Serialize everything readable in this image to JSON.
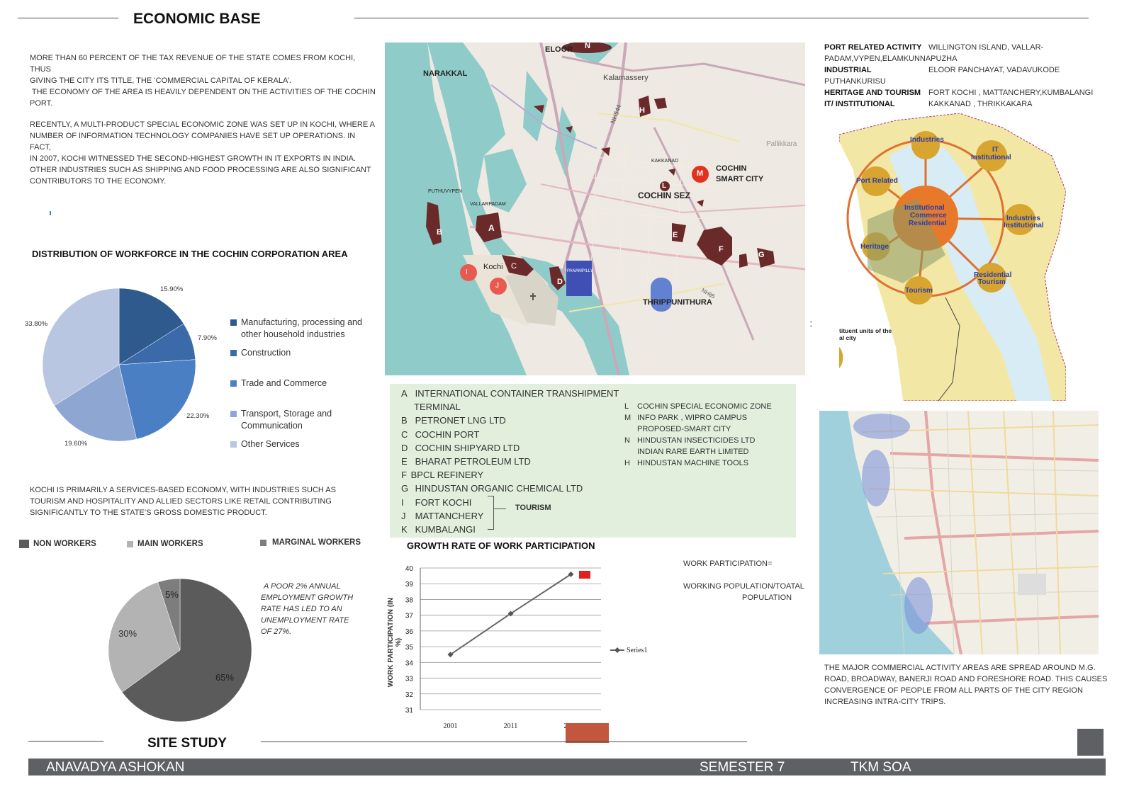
{
  "header": {
    "title": "ECONOMIC BASE"
  },
  "intro": {
    "p1": [
      "MORE THAN 60 PERCENT OF THE TAX REVENUE OF THE STATE COMES FROM KOCHI, THUS",
      "GIVING THE CITY ITS TITLE, THE ‘COMMERCIAL CAPITAL OF KERALA’.",
      " THE ECONOMY OF THE AREA IS HEAVILY DEPENDENT ON THE ACTIVITIES OF THE COCHIN",
      "PORT."
    ],
    "p2": [
      "RECENTLY, A MULTI-PRODUCT SPECIAL ECONOMIC ZONE WAS SET UP IN KOCHI, WHERE A",
      "NUMBER OF INFORMATION TECHNOLOGY COMPANIES HAVE SET UP OPERATIONS. IN FACT,",
      "IN 2007, KOCHI WITNESSED THE SECOND-HIGHEST GROWTH IN IT EXPORTS IN INDIA.",
      "OTHER INDUSTRIES SUCH AS SHIPPING AND FOOD PROCESSING ARE ALSO SIGNIFICANT",
      "CONTRIBUTORS TO THE ECONOMY."
    ]
  },
  "workforce": {
    "title": "DISTRIBUTION OF WORKFORCE IN THE COCHIN CORPORATION AREA",
    "legend": [
      {
        "label1": "Manufacturing, processing and",
        "label2": "other household industries",
        "color": "#2f5a8e"
      },
      {
        "label1": "Construction",
        "label2": "",
        "color": "#3b6aa8"
      },
      {
        "label1": "Trade and Commerce",
        "label2": "",
        "color": "#4a7fc4"
      },
      {
        "label1": "Transport, Storage and",
        "label2": "Communication",
        "color": "#8ea6d2"
      },
      {
        "label1": "Other Services",
        "label2": "",
        "color": "#b9c6e2"
      }
    ],
    "pct_labels": [
      "15.90%",
      "7.90%",
      "22.30%",
      "19.60%",
      "33.80%"
    ]
  },
  "services_note": [
    "KOCHI IS PRIMARILY A SERVICES-BASED ECONOMY, WITH INDUSTRIES SUCH AS",
    "TOURISM AND HOSPITALITY AND ALLIED SECTORS LIKE RETAIL CONTRIBUTING",
    "SIGNIFICANTLY TO THE STATE’S GROSS DOMESTIC PRODUCT."
  ],
  "workers": {
    "legend": [
      {
        "label": "NON WORKERS",
        "color": "#5b5b5b"
      },
      {
        "label": "MAIN WORKERS",
        "color": "#b3b3b3"
      },
      {
        "label": "MARGINAL WORKERS",
        "color": "#7d7d7d"
      }
    ],
    "pct_labels": [
      "65%",
      "30%",
      "5%"
    ],
    "note": [
      "A POOR 2% ANNUAL",
      "EMPLOYMENT GROWTH",
      "RATE HAS LED TO AN",
      "UNEMPLOYMENT RATE",
      "OF 27%."
    ]
  },
  "chart_data": [
    {
      "type": "pie",
      "title": "DISTRIBUTION OF WORKFORCE IN THE COCHIN CORPORATION AREA",
      "categories": [
        "Manufacturing, processing and other household industries",
        "Construction",
        "Trade and Commerce",
        "Transport, Storage and Communication",
        "Other Services"
      ],
      "values": [
        15.9,
        7.9,
        22.3,
        19.6,
        33.8
      ]
    },
    {
      "type": "pie",
      "title": "",
      "categories": [
        "NON WORKERS",
        "MAIN WORKERS",
        "MARGINAL WORKERS"
      ],
      "values": [
        65,
        30,
        5
      ]
    },
    {
      "type": "line",
      "title": "GROWTH RATE OF WORK PARTICIPATION",
      "xlabel": "",
      "ylabel": "WORK PARTICIPATION  (IN %)",
      "categories": [
        "2001",
        "2011",
        "2021"
      ],
      "series": [
        {
          "name": "Series1",
          "values": [
            34.5,
            37.1,
            39.6
          ]
        }
      ],
      "ylim": [
        31,
        40
      ],
      "yticks": [
        "31",
        "32",
        "33",
        "34",
        "35",
        "36",
        "37",
        "38",
        "39",
        "40"
      ],
      "grid": true,
      "legend": "right"
    }
  ],
  "map_labels": {
    "eloor": "ELOOR",
    "narakkal": "NARAKKAL",
    "kalamassery": "Kalamassery",
    "puthuvypen": "PUTHUVYPEN",
    "vallarpadam": "VALLARPADAM",
    "kochi": "Kochi",
    "panampilly": "PANAMPILLY",
    "kakkanad": "KAKKANAD",
    "cochin_sez": "COCHIN SEZ",
    "smart_city_1": "COCHIN",
    "smart_city_2": "SMART CITY",
    "thrippunithura": "THRIPPUNITHURA",
    "pallikkara": "Pallikkara",
    "nh": "NH544",
    "nh2": "NH85",
    "markers": [
      "N",
      "H",
      "L",
      "M",
      "A",
      "B",
      "C",
      "D",
      "E",
      "F",
      "G",
      "I",
      "J"
    ]
  },
  "key_left": [
    {
      "k": "A",
      "t": "INTERNATIONAL CONTAINER TRANSHIPMENT"
    },
    {
      "k": "",
      "t": "   TERMINAL"
    },
    {
      "k": "B",
      "t": "PETRONET LNG LTD"
    },
    {
      "k": "C",
      "t": "COCHIN PORT"
    },
    {
      "k": "D",
      "t": "COCHIN SHIPYARD LTD"
    },
    {
      "k": "E",
      "t": "BHARAT PETROLEUM LTD"
    },
    {
      "k": "F",
      "t": "BPCL REFINERY"
    },
    {
      "k": "G",
      "t": "HINDUSTAN ORGANIC CHEMICAL LTD"
    },
    {
      "k": "I",
      "t": "FORT KOCHI"
    },
    {
      "k": "J",
      "t": "MATTANCHERY"
    },
    {
      "k": "K",
      "t": "KUMBALANGI"
    }
  ],
  "key_tourism": "TOURISM",
  "key_right": [
    {
      "k": "L",
      "t": "COCHIN SPECIAL ECONOMIC ZONE"
    },
    {
      "k": "M",
      "t": "INFO PARK , WIPRO CAMPUS"
    },
    {
      "k": "",
      "t": "PROPOSED-SMART CITY"
    },
    {
      "k": "N",
      "t": "HINDUSTAN INSECTICIDES LTD"
    },
    {
      "k": "",
      "t": "INDIAN RARE EARTH LIMITED"
    },
    {
      "k": "H",
      "t": "HINDUSTAN MACHINE TOOLS"
    }
  ],
  "growth": {
    "title": "GROWTH RATE OF WORK PARTICIPATION",
    "formula1": "WORK PARTICIPATION=",
    "formula2": "WORKING POPULATION/TOATAL",
    "formula3": "POPULATION"
  },
  "port_related": {
    "rows": [
      {
        "k": "PORT RELATED ACTIVITY",
        "v": "WILLINGTON ISLAND, VALLAR-"
      },
      {
        "k": "",
        "v": "PADAM,VYPEN,ELAMKUNNAPUZHA"
      },
      {
        "k": "INDUSTRIAL",
        "v": "ELOOR PANCHAYAT, VADAVUKODE"
      },
      {
        "k": "",
        "v": "PUTHANKURISU"
      },
      {
        "k": "HERITAGE AND TOURISM",
        "v": "FORT KOCHI , MATTANCHERY,KUMBALANGI"
      },
      {
        "k": "IT/ INSTITUTIONAL",
        "v": "KAKKANAD , THRIKKAKARA"
      }
    ]
  },
  "concept_map": {
    "center": [
      "Institutional",
      "Commerce",
      "Residential"
    ],
    "nodes": [
      "Industries",
      "IT",
      "Institutional",
      "Port Related",
      "Industries",
      "Institutional",
      "Heritage",
      "Residential",
      "Tourism",
      "Tourism"
    ],
    "corner": [
      "tituent units of the",
      "al city"
    ]
  },
  "street_map_note": [
    "THE MAJOR COMMERCIAL ACTIVITY AREAS ARE SPREAD AROUND M.G.",
    "ROAD, BROADWAY, BANERJI ROAD AND FORESHORE ROAD. THIS CAUSES",
    "CONVERGENCE OF PEOPLE FROM ALL PARTS OF THE CITY REGION",
    "INCREASING INTRA-CITY TRIPS."
  ],
  "site_study": "SITE STUDY",
  "footer": {
    "name": "ANAVADYA  ASHOKAN",
    "semester": "SEMESTER 7",
    "school": "TKM SOA"
  }
}
